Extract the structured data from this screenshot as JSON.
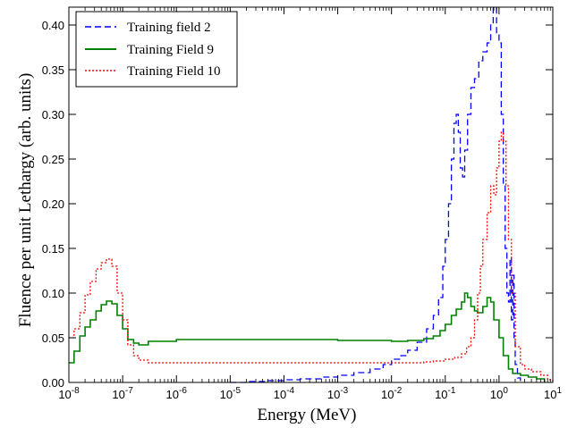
{
  "chart_data": {
    "type": "line",
    "xlabel": "Energy (MeV)",
    "ylabel": "Fluence per unit Lethargy (arb. units)",
    "xscale": "log",
    "xlim": [
      1e-08,
      10
    ],
    "ylim": [
      0,
      0.42
    ],
    "x_ticks": [
      {
        "value": 1e-08,
        "base": "10",
        "exp": "-8"
      },
      {
        "value": 1e-07,
        "base": "10",
        "exp": "-7"
      },
      {
        "value": 1e-06,
        "base": "10",
        "exp": "-6"
      },
      {
        "value": 1e-05,
        "base": "10",
        "exp": "-5"
      },
      {
        "value": 0.0001,
        "base": "10",
        "exp": "-4"
      },
      {
        "value": 0.001,
        "base": "10",
        "exp": "-3"
      },
      {
        "value": 0.01,
        "base": "10",
        "exp": "-2"
      },
      {
        "value": 0.1,
        "base": "10",
        "exp": "-1"
      },
      {
        "value": 1,
        "base": "10",
        "exp": "0"
      },
      {
        "value": 10,
        "base": "10",
        "exp": "1"
      }
    ],
    "y_ticks": [
      {
        "value": 0,
        "label": "0.00"
      },
      {
        "value": 0.05,
        "label": "0.05"
      },
      {
        "value": 0.1,
        "label": "0.10"
      },
      {
        "value": 0.15,
        "label": "0.15"
      },
      {
        "value": 0.2,
        "label": "0.20"
      },
      {
        "value": 0.25,
        "label": "0.25"
      },
      {
        "value": 0.3,
        "label": "0.30"
      },
      {
        "value": 0.35,
        "label": "0.35"
      },
      {
        "value": 0.4,
        "label": "0.40"
      }
    ],
    "grid": false,
    "legend_position": "top-left",
    "series": [
      {
        "name": "Training field 2",
        "color": "#0000ff",
        "style": "dashed",
        "points": [
          [
            1e-05,
            0.0
          ],
          [
            2e-05,
            0.001
          ],
          [
            5e-05,
            0.002
          ],
          [
            0.0001,
            0.003
          ],
          [
            0.0002,
            0.004
          ],
          [
            0.0005,
            0.006
          ],
          [
            0.001,
            0.008
          ],
          [
            0.002,
            0.011
          ],
          [
            0.004,
            0.015
          ],
          [
            0.007,
            0.02
          ],
          [
            0.01,
            0.026
          ],
          [
            0.015,
            0.03
          ],
          [
            0.02,
            0.036
          ],
          [
            0.03,
            0.045
          ],
          [
            0.045,
            0.06
          ],
          [
            0.06,
            0.075
          ],
          [
            0.075,
            0.095
          ],
          [
            0.09,
            0.13
          ],
          [
            0.1,
            0.16
          ],
          [
            0.115,
            0.2
          ],
          [
            0.13,
            0.25
          ],
          [
            0.145,
            0.29
          ],
          [
            0.16,
            0.3
          ],
          [
            0.175,
            0.28
          ],
          [
            0.19,
            0.24
          ],
          [
            0.21,
            0.23
          ],
          [
            0.23,
            0.26
          ],
          [
            0.26,
            0.3
          ],
          [
            0.3,
            0.33
          ],
          [
            0.35,
            0.34
          ],
          [
            0.42,
            0.36
          ],
          [
            0.5,
            0.37
          ],
          [
            0.6,
            0.38
          ],
          [
            0.7,
            0.4
          ],
          [
            0.78,
            0.42
          ],
          [
            0.9,
            0.39
          ],
          [
            1.0,
            0.38
          ],
          [
            1.1,
            0.3
          ],
          [
            1.2,
            0.22
          ],
          [
            1.3,
            0.15
          ],
          [
            1.4,
            0.1
          ],
          [
            1.5,
            0.09
          ],
          [
            1.6,
            0.14
          ],
          [
            1.7,
            0.07
          ],
          [
            1.8,
            0.12
          ],
          [
            1.9,
            0.05
          ],
          [
            2.0,
            0.02
          ],
          [
            2.2,
            0.005
          ],
          [
            2.5,
            0.0
          ]
        ]
      },
      {
        "name": "Training Field 9",
        "color": "#008000",
        "style": "solid",
        "points": [
          [
            1e-08,
            0.022
          ],
          [
            1.25e-08,
            0.035
          ],
          [
            1.6e-08,
            0.052
          ],
          [
            2e-08,
            0.062
          ],
          [
            2.5e-08,
            0.07
          ],
          [
            3.2e-08,
            0.08
          ],
          [
            4e-08,
            0.087
          ],
          [
            5e-08,
            0.091
          ],
          [
            6.3e-08,
            0.088
          ],
          [
            7.9e-08,
            0.075
          ],
          [
            1e-07,
            0.06
          ],
          [
            1.25e-07,
            0.048
          ],
          [
            1.6e-07,
            0.044
          ],
          [
            2e-07,
            0.042
          ],
          [
            3e-07,
            0.046
          ],
          [
            1e-06,
            0.048
          ],
          [
            1e-05,
            0.048
          ],
          [
            0.0001,
            0.048
          ],
          [
            0.001,
            0.047
          ],
          [
            0.01,
            0.046
          ],
          [
            0.02,
            0.047
          ],
          [
            0.04,
            0.049
          ],
          [
            0.06,
            0.052
          ],
          [
            0.08,
            0.058
          ],
          [
            0.1,
            0.065
          ],
          [
            0.13,
            0.075
          ],
          [
            0.16,
            0.082
          ],
          [
            0.2,
            0.09
          ],
          [
            0.23,
            0.1
          ],
          [
            0.26,
            0.095
          ],
          [
            0.3,
            0.085
          ],
          [
            0.35,
            0.08
          ],
          [
            0.4,
            0.078
          ],
          [
            0.5,
            0.085
          ],
          [
            0.6,
            0.095
          ],
          [
            0.7,
            0.09
          ],
          [
            0.8,
            0.07
          ],
          [
            1.0,
            0.05
          ],
          [
            1.2,
            0.03
          ],
          [
            1.5,
            0.015
          ],
          [
            1.8,
            0.01
          ],
          [
            2.5,
            0.008
          ],
          [
            3.5,
            0.006
          ],
          [
            5,
            0.004
          ],
          [
            7,
            0.0
          ]
        ]
      },
      {
        "name": "Training Field 10",
        "color": "#ff0000",
        "style": "dotted",
        "points": [
          [
            1e-08,
            0.05
          ],
          [
            1.25e-08,
            0.06
          ],
          [
            1.6e-08,
            0.078
          ],
          [
            2e-08,
            0.098
          ],
          [
            2.5e-08,
            0.113
          ],
          [
            3.2e-08,
            0.127
          ],
          [
            4e-08,
            0.134
          ],
          [
            5e-08,
            0.138
          ],
          [
            6.3e-08,
            0.13
          ],
          [
            7.9e-08,
            0.1
          ],
          [
            1e-07,
            0.07
          ],
          [
            1.25e-07,
            0.042
          ],
          [
            1.6e-07,
            0.03
          ],
          [
            2e-07,
            0.025
          ],
          [
            3e-07,
            0.022
          ],
          [
            1e-06,
            0.022
          ],
          [
            1e-05,
            0.022
          ],
          [
            0.0001,
            0.022
          ],
          [
            0.001,
            0.022
          ],
          [
            0.01,
            0.022
          ],
          [
            0.02,
            0.022
          ],
          [
            0.04,
            0.023
          ],
          [
            0.06,
            0.024
          ],
          [
            0.1,
            0.026
          ],
          [
            0.15,
            0.028
          ],
          [
            0.2,
            0.032
          ],
          [
            0.25,
            0.04
          ],
          [
            0.3,
            0.05
          ],
          [
            0.35,
            0.07
          ],
          [
            0.4,
            0.1
          ],
          [
            0.45,
            0.13
          ],
          [
            0.5,
            0.16
          ],
          [
            0.6,
            0.19
          ],
          [
            0.7,
            0.22
          ],
          [
            0.8,
            0.21
          ],
          [
            0.9,
            0.24
          ],
          [
            1.0,
            0.27
          ],
          [
            1.1,
            0.28
          ],
          [
            1.2,
            0.27
          ],
          [
            1.35,
            0.22
          ],
          [
            1.5,
            0.16
          ],
          [
            1.7,
            0.1
          ],
          [
            2.0,
            0.04
          ],
          [
            2.5,
            0.02
          ],
          [
            3,
            0.015
          ],
          [
            4,
            0.012
          ],
          [
            6,
            0.008
          ],
          [
            8,
            0.003
          ],
          [
            10,
            0.0
          ]
        ]
      }
    ]
  }
}
